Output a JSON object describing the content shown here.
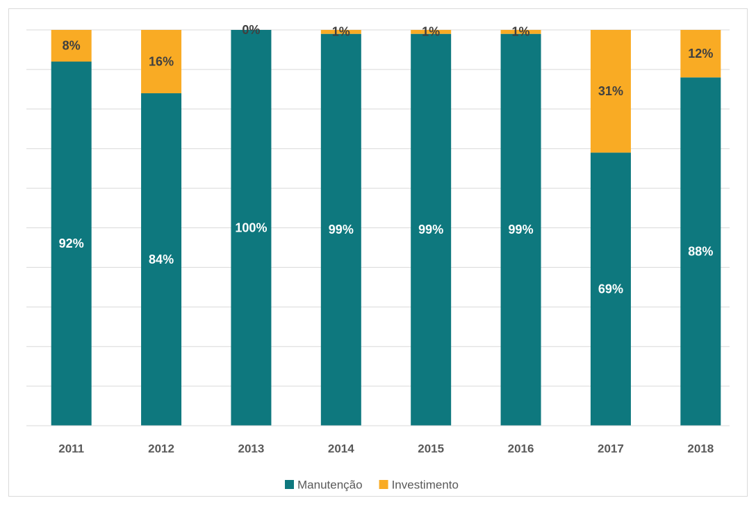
{
  "chart_data": {
    "type": "stacked_bar",
    "categories": [
      "2011",
      "2012",
      "2013",
      "2014",
      "2015",
      "2016",
      "2017",
      "2018"
    ],
    "series": [
      {
        "name": "Manutenção",
        "color": "#0e787e",
        "values": [
          92,
          84,
          100,
          99,
          99,
          99,
          69,
          88
        ],
        "value_labels": [
          "92%",
          "84%",
          "100%",
          "99%",
          "99%",
          "99%",
          "69%",
          "88%"
        ]
      },
      {
        "name": "Investimento",
        "color": "#f9ab24",
        "values": [
          8,
          16,
          0,
          1,
          1,
          1,
          31,
          12
        ],
        "value_labels": [
          "8%",
          "16%",
          "0%",
          "1%",
          "1%",
          "1%",
          "31%",
          "12%"
        ]
      }
    ],
    "ylim": [
      0,
      100
    ],
    "yticks": [
      0,
      10,
      20,
      30,
      40,
      50,
      60,
      70,
      80,
      90,
      100
    ],
    "grid": true,
    "legend": "bottom"
  }
}
